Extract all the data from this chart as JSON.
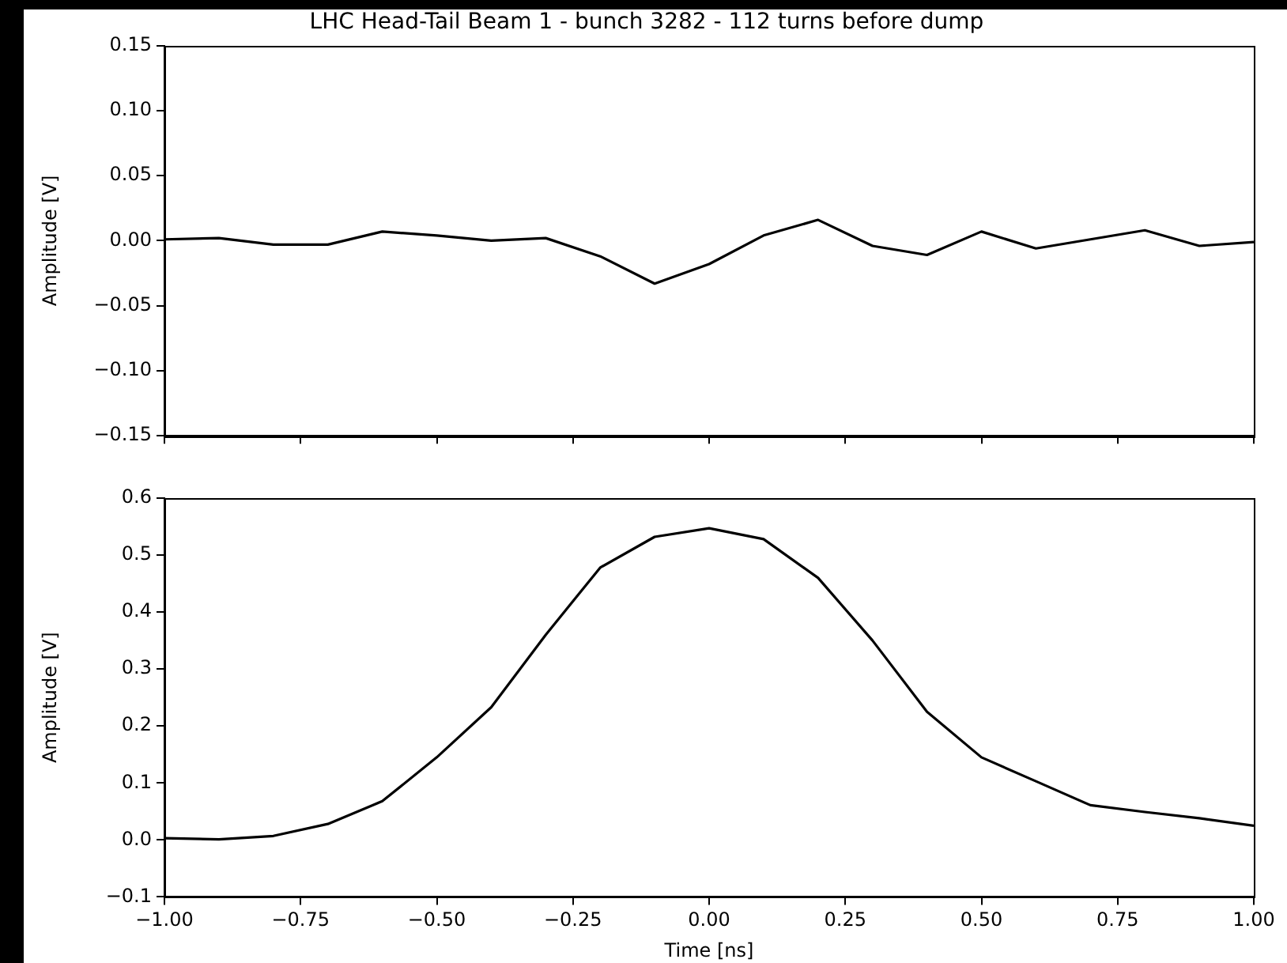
{
  "chart_data": [
    {
      "type": "line",
      "title": "LHC Head-Tail Beam 1 - bunch 3282 - 112 turns before dump",
      "ylabel": "Amplitude [V]",
      "tick_labels": "y",
      "grid": false,
      "marker": "none",
      "x": [
        -1.0,
        -0.9,
        -0.8,
        -0.7,
        -0.6,
        -0.5,
        -0.4,
        -0.3,
        -0.2,
        -0.1,
        0.0,
        0.1,
        0.2,
        0.3,
        0.4,
        0.5,
        0.6,
        0.7,
        0.8,
        0.9,
        1.0
      ],
      "series": [
        {
          "color": "#000000",
          "values": [
            0.001,
            0.002,
            -0.003,
            -0.003,
            0.007,
            0.004,
            0.0,
            0.002,
            -0.012,
            -0.033,
            -0.018,
            0.004,
            0.016,
            -0.004,
            -0.011,
            0.007,
            -0.006,
            0.001,
            0.008,
            -0.004,
            -0.001
          ]
        }
      ],
      "xlim": [
        -1.0,
        1.0
      ],
      "xticks": [
        {
          "value": -1,
          "label": null
        },
        {
          "value": -0.75,
          "label": null
        },
        {
          "value": -0.5,
          "label": null
        },
        {
          "value": -0.25,
          "label": null
        },
        {
          "value": 0,
          "label": null
        },
        {
          "value": 0.25,
          "label": null
        },
        {
          "value": 0.5,
          "label": null
        },
        {
          "value": 0.75,
          "label": null
        },
        {
          "value": 1,
          "label": null
        }
      ],
      "ylim": [
        -0.15,
        0.15
      ],
      "yticks": [
        {
          "value": -0.15,
          "label": "−0.15"
        },
        {
          "value": -0.1,
          "label": "−0.10"
        },
        {
          "value": -0.05,
          "label": "−0.05"
        },
        {
          "value": 0,
          "label": "0.00"
        },
        {
          "value": 0.05,
          "label": "0.05"
        },
        {
          "value": 0.1,
          "label": "0.10"
        },
        {
          "value": 0.15,
          "label": "0.15"
        }
      ]
    },
    {
      "type": "line",
      "xlabel": "Time [ns]",
      "ylabel": "Amplitude [V]",
      "grid": false,
      "marker": "none",
      "x": [
        -1.0,
        -0.9,
        -0.8,
        -0.7,
        -0.6,
        -0.5,
        -0.4,
        -0.3,
        -0.2,
        -0.1,
        0.0,
        0.1,
        0.2,
        0.3,
        0.4,
        0.5,
        0.6,
        0.7,
        0.8,
        0.9,
        1.0
      ],
      "series": [
        {
          "color": "#000000",
          "values": [
            0.003,
            0.001,
            0.007,
            0.028,
            0.068,
            0.145,
            0.233,
            0.36,
            0.478,
            0.532,
            0.547,
            0.528,
            0.46,
            0.35,
            0.225,
            0.145,
            0.103,
            0.061,
            0.049,
            0.038,
            0.025
          ]
        }
      ],
      "xlim": [
        -1.0,
        1.0
      ],
      "xticks": [
        {
          "value": -1,
          "label": "−1.00"
        },
        {
          "value": -0.75,
          "label": "−0.75"
        },
        {
          "value": -0.5,
          "label": "−0.50"
        },
        {
          "value": -0.25,
          "label": "−0.25"
        },
        {
          "value": 0,
          "label": "0.00"
        },
        {
          "value": 0.25,
          "label": "0.25"
        },
        {
          "value": 0.5,
          "label": "0.50"
        },
        {
          "value": 0.75,
          "label": "0.75"
        },
        {
          "value": 1,
          "label": "1.00"
        }
      ],
      "ylim": [
        -0.1,
        0.6
      ],
      "yticks": [
        {
          "value": -0.1,
          "label": "−0.1"
        },
        {
          "value": 0,
          "label": "0.0"
        },
        {
          "value": 0.1,
          "label": "0.1"
        },
        {
          "value": 0.2,
          "label": "0.2"
        },
        {
          "value": 0.3,
          "label": "0.3"
        },
        {
          "value": 0.4,
          "label": "0.4"
        },
        {
          "value": 0.5,
          "label": "0.5"
        },
        {
          "value": 0.6,
          "label": "0.6"
        }
      ]
    }
  ]
}
